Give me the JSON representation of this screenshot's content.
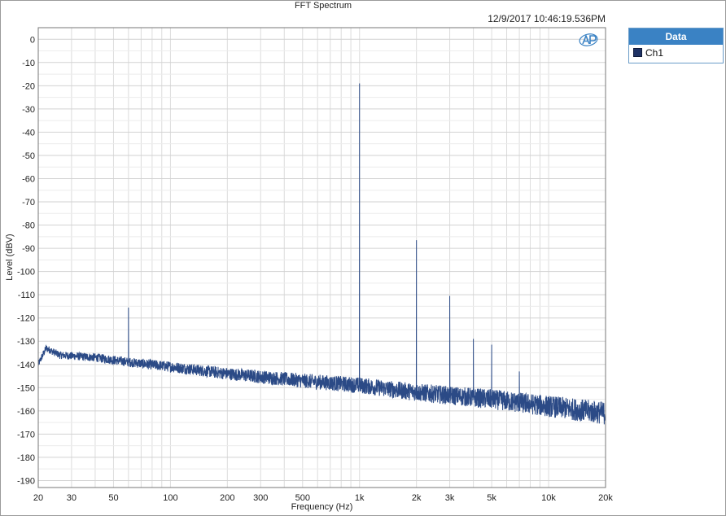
{
  "chart_data": {
    "type": "line",
    "title": "FFT Spectrum",
    "timestamp": "12/9/2017 10:46:19.536PM",
    "xlabel": "Frequency (Hz)",
    "ylabel": "Level (dBV)",
    "xscale": "log",
    "xlim": [
      20,
      20000
    ],
    "ylim": [
      -193,
      5
    ],
    "grid": true,
    "legend_placement": "top-right outside",
    "legend_title": "Data",
    "x_ticks": [
      {
        "v": 20,
        "label": "20"
      },
      {
        "v": 30,
        "label": "30"
      },
      {
        "v": 50,
        "label": "50"
      },
      {
        "v": 100,
        "label": "100"
      },
      {
        "v": 200,
        "label": "200"
      },
      {
        "v": 300,
        "label": "300"
      },
      {
        "v": 500,
        "label": "500"
      },
      {
        "v": 1000,
        "label": "1k"
      },
      {
        "v": 2000,
        "label": "2k"
      },
      {
        "v": 3000,
        "label": "3k"
      },
      {
        "v": 5000,
        "label": "5k"
      },
      {
        "v": 10000,
        "label": "10k"
      },
      {
        "v": 20000,
        "label": "20k"
      }
    ],
    "y_ticks": [
      0,
      -10,
      -20,
      -30,
      -40,
      -50,
      -60,
      -70,
      -80,
      -90,
      -100,
      -110,
      -120,
      -130,
      -140,
      -150,
      -160,
      -170,
      -180,
      -190
    ],
    "series": [
      {
        "name": "Ch1",
        "color": "#2b4a86",
        "noise_floor": [
          [
            20,
            -140
          ],
          [
            22,
            -133
          ],
          [
            26,
            -136
          ],
          [
            40,
            -137
          ],
          [
            60,
            -139
          ],
          [
            100,
            -141
          ],
          [
            200,
            -144
          ],
          [
            500,
            -147
          ],
          [
            1000,
            -149
          ],
          [
            2000,
            -152
          ],
          [
            5000,
            -155
          ],
          [
            10000,
            -158
          ],
          [
            20000,
            -161
          ]
        ],
        "peaks": [
          {
            "x": 60,
            "y": -115.5
          },
          {
            "x": 1000,
            "y": -19
          },
          {
            "x": 2000,
            "y": -86.5
          },
          {
            "x": 3000,
            "y": -110.5
          },
          {
            "x": 4000,
            "y": -129
          },
          {
            "x": 5000,
            "y": -131.5
          },
          {
            "x": 7000,
            "y": -143
          }
        ]
      }
    ]
  }
}
